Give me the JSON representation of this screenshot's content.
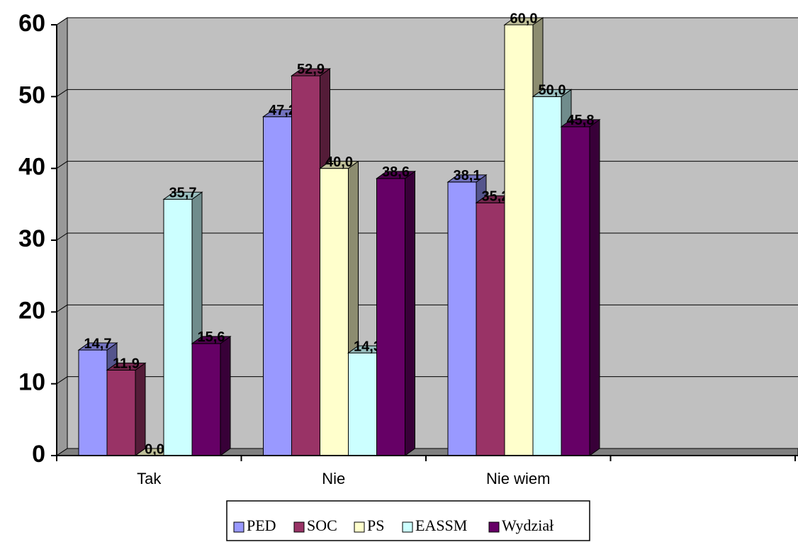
{
  "chart_data": {
    "type": "bar3d",
    "categories": [
      "Tak",
      "Nie",
      "Nie wiem",
      null
    ],
    "series": [
      {
        "name": "PED",
        "color": "#9999ff",
        "values": [
          14.7,
          47.2,
          38.1,
          null
        ],
        "value_labels": [
          "14,7",
          "47,2",
          "38,1",
          null
        ]
      },
      {
        "name": "SOC",
        "color": "#993366",
        "values": [
          11.9,
          52.9,
          35.2,
          null
        ],
        "value_labels": [
          "11,9",
          "52,9",
          "35,2",
          null
        ]
      },
      {
        "name": "PS",
        "color": "#ffffcc",
        "values": [
          0.0,
          40.0,
          60.0,
          null
        ],
        "value_labels": [
          "0,0",
          "40,0",
          "60,0",
          null
        ]
      },
      {
        "name": "EASSM",
        "color": "#ccffff",
        "values": [
          35.7,
          14.3,
          50.0,
          null
        ],
        "value_labels": [
          "35,7",
          "14,3",
          "50,0",
          null
        ]
      },
      {
        "name": "Wydział",
        "color": "#660066",
        "values": [
          15.6,
          38.6,
          45.8,
          null
        ],
        "value_labels": [
          "15,6",
          "38,6",
          "45,8",
          null
        ]
      }
    ],
    "ylim": [
      0,
      60
    ],
    "yticks": [
      0,
      10,
      20,
      30,
      40,
      50,
      60
    ],
    "grid": true,
    "legend": "bottom"
  }
}
